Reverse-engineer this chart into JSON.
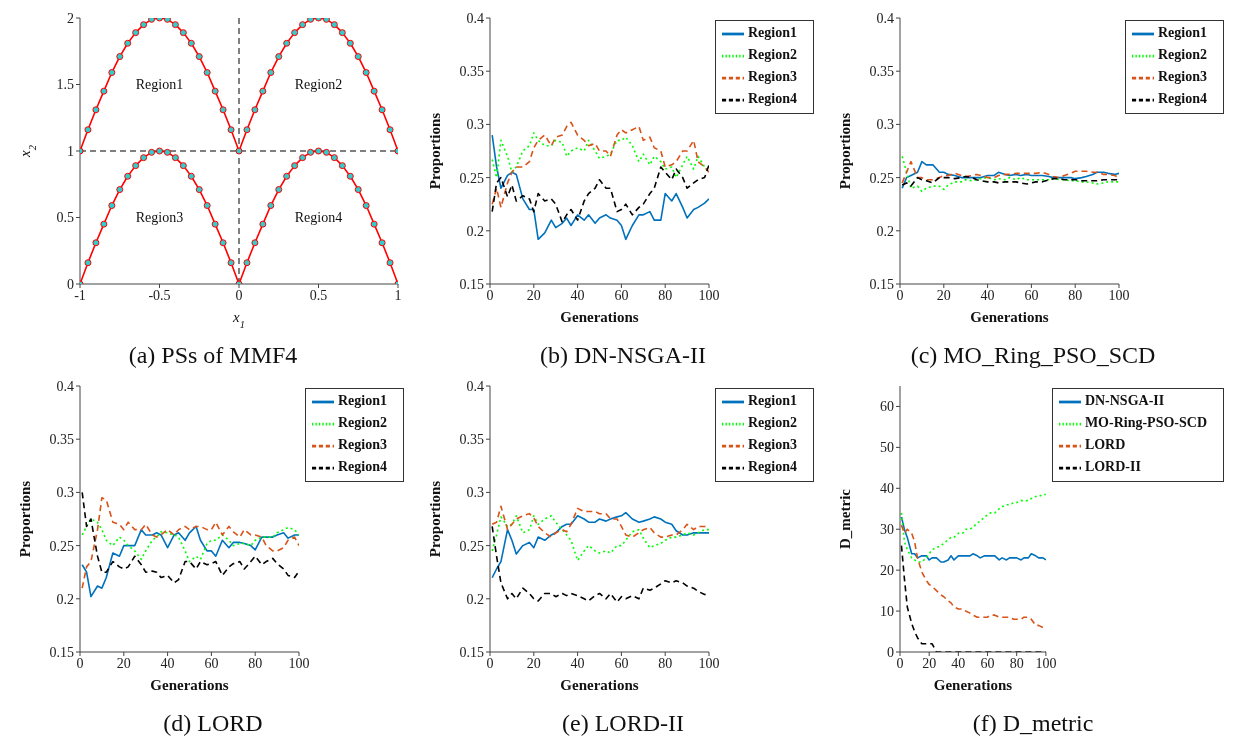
{
  "chart_data": [
    {
      "type": "line",
      "title": "(a) PSs of MMF4",
      "xlabel": "x$_{1}$",
      "ylabel": "x$_{2}$",
      "marker": "circle",
      "x": [
        -1,
        -0.95,
        -0.9,
        -0.85,
        -0.8,
        -0.75,
        -0.7,
        -0.65,
        -0.6,
        -0.55,
        -0.5,
        -0.45,
        -0.4,
        -0.35,
        -0.3,
        -0.25,
        -0.2,
        -0.15,
        -0.1,
        -0.05,
        0,
        0.05,
        0.1,
        0.15,
        0.2,
        0.25,
        0.3,
        0.35,
        0.4,
        0.45,
        0.5,
        0.55,
        0.6,
        0.65,
        0.7,
        0.75,
        0.8,
        0.85,
        0.9,
        0.95,
        1
      ],
      "series": [
        {
          "color": "#ff0000",
          "values": [
            1,
            1.16,
            1.31,
            1.45,
            1.59,
            1.71,
            1.81,
            1.89,
            1.95,
            1.99,
            2,
            1.99,
            1.95,
            1.89,
            1.81,
            1.71,
            1.59,
            1.45,
            1.31,
            1.16,
            1,
            1.16,
            1.31,
            1.45,
            1.59,
            1.71,
            1.81,
            1.89,
            1.95,
            1.99,
            2,
            1.99,
            1.95,
            1.89,
            1.81,
            1.71,
            1.59,
            1.45,
            1.31,
            1.16,
            1
          ]
        },
        {
          "color": "#ff0000",
          "values": [
            0,
            0.16,
            0.31,
            0.45,
            0.59,
            0.71,
            0.81,
            0.89,
            0.95,
            0.99,
            1,
            0.99,
            0.95,
            0.89,
            0.81,
            0.71,
            0.59,
            0.45,
            0.31,
            0.16,
            0,
            0.16,
            0.31,
            0.45,
            0.59,
            0.71,
            0.81,
            0.89,
            0.95,
            0.99,
            1,
            0.99,
            0.95,
            0.89,
            0.81,
            0.71,
            0.59,
            0.45,
            0.31,
            0.16,
            0
          ]
        }
      ],
      "xlim": [
        -1,
        1
      ],
      "xticks": [
        -1,
        -0.5,
        0,
        0.5,
        1
      ],
      "ylim": [
        0,
        2
      ],
      "yticks": [
        0,
        0.5,
        1,
        1.5,
        2
      ],
      "ref_lines": [
        {
          "axis": "x",
          "value": 0,
          "color": "#000000",
          "line_style": "dashed"
        },
        {
          "axis": "y",
          "value": 1,
          "color": "#000000",
          "line_style": "dashed"
        }
      ],
      "annotations": [
        "Region1",
        "Region2",
        "Region3",
        "Region4"
      ]
    },
    {
      "type": "line",
      "title": "(b) DN-NSGA-II",
      "xlabel": "Generations",
      "ylabel": "Proportions",
      "legend": "top right",
      "x": [
        1,
        3,
        5,
        8,
        10,
        12,
        15,
        18,
        20,
        22,
        25,
        28,
        30,
        33,
        35,
        37,
        40,
        43,
        45,
        48,
        50,
        53,
        55,
        58,
        60,
        62,
        65,
        68,
        70,
        73,
        75,
        78,
        80,
        83,
        85,
        88,
        90,
        93,
        95,
        98,
        100
      ],
      "series": [
        {
          "name": "Region1",
          "color": "#0072bd",
          "line_style": "solid",
          "values": [
            0.29,
            0.26,
            0.24,
            0.252,
            0.255,
            0.253,
            0.23,
            0.22,
            0.22,
            0.192,
            0.198,
            0.21,
            0.203,
            0.207,
            0.212,
            0.205,
            0.215,
            0.21,
            0.215,
            0.207,
            0.212,
            0.215,
            0.212,
            0.21,
            0.205,
            0.192,
            0.205,
            0.215,
            0.215,
            0.218,
            0.21,
            0.21,
            0.235,
            0.228,
            0.235,
            0.222,
            0.212,
            0.22,
            0.222,
            0.226,
            0.23
          ]
        },
        {
          "name": "Region2",
          "color": "#00ff00",
          "line_style": "dotted",
          "values": [
            0.267,
            0.25,
            0.285,
            0.27,
            0.255,
            0.26,
            0.275,
            0.28,
            0.292,
            0.285,
            0.28,
            0.28,
            0.285,
            0.283,
            0.27,
            0.275,
            0.278,
            0.275,
            0.285,
            0.275,
            0.268,
            0.27,
            0.272,
            0.285,
            0.285,
            0.288,
            0.28,
            0.265,
            0.272,
            0.262,
            0.27,
            0.265,
            0.258,
            0.26,
            0.25,
            0.262,
            0.27,
            0.258,
            0.27,
            0.26,
            0.255
          ]
        },
        {
          "name": "Region3",
          "color": "#d95319",
          "line_style": "dashed",
          "values": [
            0.225,
            0.24,
            0.222,
            0.245,
            0.255,
            0.26,
            0.26,
            0.265,
            0.278,
            0.285,
            0.29,
            0.28,
            0.288,
            0.29,
            0.298,
            0.302,
            0.29,
            0.285,
            0.28,
            0.282,
            0.275,
            0.275,
            0.27,
            0.29,
            0.295,
            0.292,
            0.295,
            0.298,
            0.285,
            0.288,
            0.278,
            0.275,
            0.26,
            0.262,
            0.265,
            0.275,
            0.275,
            0.285,
            0.265,
            0.26,
            0.255
          ]
        },
        {
          "name": "Region4",
          "color": "#000000",
          "line_style": "dashed",
          "values": [
            0.218,
            0.245,
            0.25,
            0.232,
            0.243,
            0.228,
            0.233,
            0.23,
            0.218,
            0.235,
            0.228,
            0.23,
            0.225,
            0.208,
            0.215,
            0.22,
            0.21,
            0.228,
            0.235,
            0.24,
            0.248,
            0.24,
            0.24,
            0.218,
            0.22,
            0.225,
            0.215,
            0.222,
            0.225,
            0.235,
            0.24,
            0.26,
            0.255,
            0.248,
            0.258,
            0.25,
            0.24,
            0.245,
            0.248,
            0.25,
            0.262
          ]
        }
      ],
      "xlim": [
        0,
        100
      ],
      "xticks": [
        0,
        20,
        40,
        60,
        80,
        100
      ],
      "ylim": [
        0.15,
        0.4
      ],
      "yticks": [
        0.15,
        0.2,
        0.25,
        0.3,
        0.35,
        0.4
      ]
    },
    {
      "type": "line",
      "title": "(c) MO_Ring_PSO_SCD",
      "xlabel": "Generations",
      "ylabel": "Proportions",
      "legend": "top right",
      "x": [
        1,
        3,
        5,
        8,
        10,
        12,
        15,
        18,
        20,
        22,
        25,
        28,
        30,
        33,
        35,
        37,
        40,
        43,
        45,
        48,
        50,
        53,
        55,
        58,
        60,
        62,
        65,
        68,
        70,
        73,
        75,
        78,
        80,
        83,
        85,
        88,
        90,
        93,
        95,
        98,
        100
      ],
      "series": [
        {
          "name": "Region1",
          "color": "#0072bd",
          "line_style": "solid",
          "values": [
            0.24,
            0.25,
            0.252,
            0.255,
            0.265,
            0.262,
            0.262,
            0.255,
            0.255,
            0.253,
            0.252,
            0.25,
            0.25,
            0.25,
            0.25,
            0.25,
            0.252,
            0.252,
            0.255,
            0.253,
            0.252,
            0.253,
            0.252,
            0.253,
            0.252,
            0.252,
            0.252,
            0.251,
            0.25,
            0.25,
            0.25,
            0.25,
            0.249,
            0.25,
            0.251,
            0.253,
            0.255,
            0.255,
            0.254,
            0.253,
            0.254
          ]
        },
        {
          "name": "Region2",
          "color": "#00ff00",
          "line_style": "dotted",
          "values": [
            0.27,
            0.255,
            0.24,
            0.242,
            0.237,
            0.24,
            0.242,
            0.242,
            0.239,
            0.243,
            0.246,
            0.246,
            0.248,
            0.247,
            0.248,
            0.249,
            0.25,
            0.248,
            0.249,
            0.248,
            0.25,
            0.248,
            0.25,
            0.248,
            0.248,
            0.248,
            0.248,
            0.248,
            0.249,
            0.248,
            0.248,
            0.247,
            0.247,
            0.246,
            0.246,
            0.245,
            0.244,
            0.245,
            0.246,
            0.246,
            0.246
          ]
        },
        {
          "name": "Region3",
          "color": "#d95319",
          "line_style": "dashed",
          "values": [
            0.245,
            0.255,
            0.265,
            0.25,
            0.25,
            0.248,
            0.248,
            0.25,
            0.252,
            0.252,
            0.254,
            0.252,
            0.251,
            0.252,
            0.253,
            0.252,
            0.25,
            0.25,
            0.252,
            0.253,
            0.253,
            0.254,
            0.254,
            0.254,
            0.254,
            0.254,
            0.255,
            0.253,
            0.251,
            0.25,
            0.252,
            0.254,
            0.256,
            0.256,
            0.256,
            0.255,
            0.255,
            0.253,
            0.253,
            0.252,
            0.25
          ]
        },
        {
          "name": "Region4",
          "color": "#000000",
          "line_style": "dashed",
          "values": [
            0.243,
            0.245,
            0.242,
            0.25,
            0.248,
            0.247,
            0.245,
            0.25,
            0.25,
            0.25,
            0.249,
            0.25,
            0.251,
            0.25,
            0.248,
            0.247,
            0.246,
            0.246,
            0.245,
            0.246,
            0.246,
            0.246,
            0.245,
            0.244,
            0.245,
            0.246,
            0.246,
            0.248,
            0.249,
            0.249,
            0.248,
            0.248,
            0.248,
            0.247,
            0.247,
            0.247,
            0.247,
            0.248,
            0.248,
            0.248,
            0.248
          ]
        }
      ],
      "xlim": [
        0,
        100
      ],
      "xticks": [
        0,
        20,
        40,
        60,
        80,
        100
      ],
      "ylim": [
        0.15,
        0.4
      ],
      "yticks": [
        0.15,
        0.2,
        0.25,
        0.3,
        0.35,
        0.4
      ]
    },
    {
      "type": "line",
      "title": "(d) LORD",
      "xlabel": "Generations",
      "ylabel": "Proportions",
      "legend": "top right",
      "x": [
        1,
        3,
        5,
        8,
        10,
        12,
        15,
        18,
        20,
        22,
        25,
        28,
        30,
        33,
        35,
        37,
        40,
        43,
        45,
        48,
        50,
        53,
        55,
        58,
        60,
        62,
        65,
        68,
        70,
        73,
        75,
        78,
        80,
        83,
        85,
        88,
        90,
        93,
        95,
        98,
        100
      ],
      "series": [
        {
          "name": "Region1",
          "color": "#0072bd",
          "line_style": "solid",
          "values": [
            0.232,
            0.225,
            0.202,
            0.212,
            0.21,
            0.22,
            0.243,
            0.24,
            0.25,
            0.25,
            0.25,
            0.265,
            0.26,
            0.26,
            0.262,
            0.26,
            0.248,
            0.26,
            0.262,
            0.255,
            0.262,
            0.268,
            0.255,
            0.245,
            0.245,
            0.24,
            0.255,
            0.248,
            0.253,
            0.253,
            0.252,
            0.25,
            0.246,
            0.258,
            0.258,
            0.258,
            0.26,
            0.262,
            0.257,
            0.26,
            0.26
          ]
        },
        {
          "name": "Region2",
          "color": "#00ff00",
          "line_style": "dotted",
          "values": [
            0.26,
            0.268,
            0.275,
            0.272,
            0.265,
            0.255,
            0.25,
            0.258,
            0.255,
            0.25,
            0.245,
            0.237,
            0.245,
            0.255,
            0.258,
            0.263,
            0.262,
            0.26,
            0.258,
            0.245,
            0.235,
            0.24,
            0.237,
            0.252,
            0.255,
            0.255,
            0.26,
            0.255,
            0.25,
            0.252,
            0.252,
            0.25,
            0.255,
            0.258,
            0.258,
            0.258,
            0.262,
            0.265,
            0.267,
            0.265,
            0.26
          ]
        },
        {
          "name": "Region3",
          "color": "#d95319",
          "line_style": "dashed",
          "values": [
            0.21,
            0.23,
            0.235,
            0.265,
            0.295,
            0.293,
            0.272,
            0.27,
            0.265,
            0.272,
            0.265,
            0.265,
            0.27,
            0.26,
            0.258,
            0.26,
            0.265,
            0.26,
            0.265,
            0.268,
            0.265,
            0.268,
            0.268,
            0.265,
            0.265,
            0.272,
            0.26,
            0.268,
            0.263,
            0.258,
            0.265,
            0.26,
            0.26,
            0.258,
            0.25,
            0.245,
            0.245,
            0.248,
            0.255,
            0.258,
            0.25
          ]
        },
        {
          "name": "Region4",
          "color": "#000000",
          "line_style": "dashed",
          "values": [
            0.3,
            0.268,
            0.275,
            0.24,
            0.225,
            0.225,
            0.235,
            0.23,
            0.228,
            0.23,
            0.24,
            0.232,
            0.225,
            0.226,
            0.225,
            0.22,
            0.222,
            0.215,
            0.218,
            0.235,
            0.235,
            0.228,
            0.235,
            0.232,
            0.233,
            0.235,
            0.222,
            0.23,
            0.233,
            0.235,
            0.228,
            0.235,
            0.24,
            0.232,
            0.235,
            0.238,
            0.233,
            0.228,
            0.222,
            0.22,
            0.226
          ]
        }
      ],
      "xlim": [
        0,
        100
      ],
      "xticks": [
        0,
        20,
        40,
        60,
        80,
        100
      ],
      "ylim": [
        0.15,
        0.4
      ],
      "yticks": [
        0.15,
        0.2,
        0.25,
        0.3,
        0.35,
        0.4
      ]
    },
    {
      "type": "line",
      "title": "(e) LORD-II",
      "xlabel": "Generations",
      "ylabel": "Proportions",
      "legend": "top right",
      "x": [
        1,
        3,
        5,
        8,
        10,
        12,
        15,
        18,
        20,
        22,
        25,
        28,
        30,
        33,
        35,
        37,
        40,
        43,
        45,
        48,
        50,
        53,
        55,
        58,
        60,
        62,
        65,
        68,
        70,
        73,
        75,
        78,
        80,
        83,
        85,
        88,
        90,
        93,
        95,
        98,
        100
      ],
      "series": [
        {
          "name": "Region1",
          "color": "#0072bd",
          "line_style": "solid",
          "values": [
            0.22,
            0.228,
            0.235,
            0.265,
            0.255,
            0.242,
            0.25,
            0.253,
            0.248,
            0.258,
            0.255,
            0.26,
            0.262,
            0.268,
            0.27,
            0.27,
            0.278,
            0.275,
            0.272,
            0.272,
            0.275,
            0.273,
            0.275,
            0.277,
            0.278,
            0.281,
            0.275,
            0.272,
            0.273,
            0.275,
            0.277,
            0.275,
            0.272,
            0.27,
            0.264,
            0.26,
            0.26,
            0.262,
            0.262,
            0.262,
            0.262
          ]
        },
        {
          "name": "Region2",
          "color": "#00ff00",
          "line_style": "dotted",
          "values": [
            0.245,
            0.26,
            0.277,
            0.268,
            0.27,
            0.278,
            0.262,
            0.265,
            0.278,
            0.27,
            0.275,
            0.278,
            0.272,
            0.265,
            0.26,
            0.255,
            0.236,
            0.245,
            0.25,
            0.245,
            0.243,
            0.245,
            0.243,
            0.25,
            0.25,
            0.255,
            0.263,
            0.265,
            0.257,
            0.248,
            0.25,
            0.252,
            0.255,
            0.258,
            0.258,
            0.26,
            0.262,
            0.26,
            0.262,
            0.265,
            0.265
          ]
        },
        {
          "name": "Region3",
          "color": "#d95319",
          "line_style": "dashed",
          "values": [
            0.27,
            0.272,
            0.287,
            0.265,
            0.27,
            0.275,
            0.278,
            0.28,
            0.276,
            0.268,
            0.262,
            0.258,
            0.262,
            0.265,
            0.263,
            0.27,
            0.285,
            0.282,
            0.282,
            0.282,
            0.28,
            0.28,
            0.275,
            0.275,
            0.268,
            0.26,
            0.258,
            0.262,
            0.265,
            0.267,
            0.262,
            0.258,
            0.258,
            0.26,
            0.26,
            0.265,
            0.27,
            0.265,
            0.268,
            0.268,
            0.267
          ]
        },
        {
          "name": "Region4",
          "color": "#000000",
          "line_style": "dashed",
          "values": [
            0.268,
            0.24,
            0.215,
            0.2,
            0.205,
            0.2,
            0.21,
            0.205,
            0.2,
            0.198,
            0.205,
            0.205,
            0.202,
            0.205,
            0.203,
            0.205,
            0.203,
            0.2,
            0.198,
            0.203,
            0.205,
            0.2,
            0.205,
            0.197,
            0.202,
            0.2,
            0.203,
            0.2,
            0.21,
            0.208,
            0.21,
            0.214,
            0.217,
            0.215,
            0.217,
            0.215,
            0.212,
            0.21,
            0.207,
            0.204,
            0.204
          ]
        }
      ],
      "xlim": [
        0,
        100
      ],
      "xticks": [
        0,
        20,
        40,
        60,
        80,
        100
      ],
      "ylim": [
        0.15,
        0.4
      ],
      "yticks": [
        0.15,
        0.2,
        0.25,
        0.3,
        0.35,
        0.4
      ]
    },
    {
      "type": "line",
      "title": "(f) D_metric",
      "xlabel": "Generations",
      "ylabel": "D_metric",
      "legend": "top right",
      "x": [
        1,
        3,
        5,
        8,
        10,
        12,
        15,
        18,
        20,
        22,
        25,
        28,
        30,
        33,
        35,
        37,
        40,
        43,
        45,
        48,
        50,
        53,
        55,
        58,
        60,
        62,
        65,
        68,
        70,
        73,
        75,
        78,
        80,
        83,
        85,
        88,
        90,
        93,
        95,
        98,
        100
      ],
      "series": [
        {
          "name": "DN-NSGA-II",
          "color": "#0072bd",
          "line_style": "solid",
          "values": [
            33,
            30,
            28,
            24,
            24,
            23,
            23.5,
            23.5,
            22.5,
            23,
            23,
            22,
            22,
            22.5,
            23.5,
            22.5,
            23.5,
            23.5,
            23.5,
            23.5,
            24,
            23.5,
            23,
            23.5,
            23.5,
            23.5,
            23.5,
            22.5,
            23,
            22.5,
            23,
            23,
            23,
            22.5,
            23,
            23,
            24,
            23.5,
            23,
            23,
            22.5
          ]
        },
        {
          "name": "MO-Ring-PSO-SCD",
          "color": "#00ff00",
          "line_style": "dotted",
          "values": [
            34,
            27,
            25,
            23,
            22.5,
            22,
            22,
            23,
            24,
            25,
            25.5,
            26,
            26.5,
            27.5,
            28,
            28,
            29,
            29,
            30,
            30,
            30.5,
            31.5,
            32,
            33,
            33.5,
            34,
            34,
            35,
            35.5,
            36,
            36,
            36.5,
            36.5,
            37,
            37,
            37,
            37.5,
            38,
            38,
            38.5,
            38.5
          ]
        },
        {
          "name": "LORD",
          "color": "#d95319",
          "line_style": "dashed",
          "values": [
            31,
            29,
            30,
            29,
            27,
            23,
            19.5,
            17.5,
            16.5,
            16,
            15,
            14,
            13.5,
            12.5,
            12,
            11,
            10.5,
            10.5,
            10,
            9.5,
            9,
            8.5,
            8.5,
            8.5,
            8.5,
            9,
            9,
            8.5,
            8.5,
            8.5,
            8.5,
            8,
            8,
            8,
            8.5,
            8.5,
            8,
            6.5,
            6.5,
            6,
            6
          ]
        },
        {
          "name": "LORD-II",
          "color": "#000000",
          "line_style": "dashed",
          "values": [
            26,
            18,
            11,
            7,
            5,
            3.5,
            2,
            2,
            2,
            2,
            0,
            0,
            0,
            0,
            0,
            0,
            0,
            0,
            0,
            0,
            0,
            0,
            0,
            0,
            0,
            0,
            0,
            0,
            0,
            0,
            0,
            0,
            0,
            0,
            0,
            0,
            0,
            0,
            0,
            0,
            0
          ]
        }
      ],
      "xlim": [
        0,
        100
      ],
      "xticks": [
        0,
        20,
        40,
        60,
        80,
        100
      ],
      "ylim": [
        0,
        65
      ],
      "yticks": [
        0,
        10,
        20,
        30,
        40,
        50,
        60
      ]
    }
  ]
}
